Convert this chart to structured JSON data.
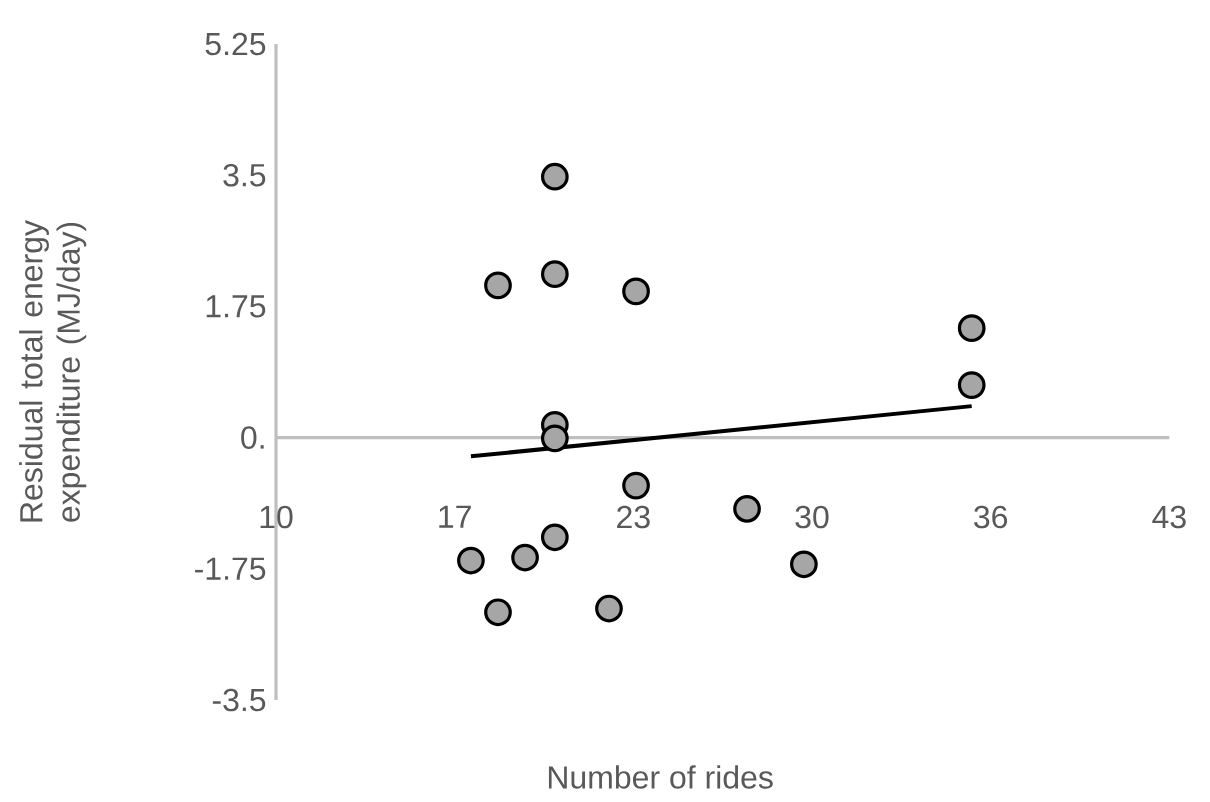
{
  "chart_data": {
    "type": "scatter",
    "xlabel": "Number of rides",
    "ylabel": "Residual total energy expenditure  (MJ/day)",
    "xlim": [
      10,
      43
    ],
    "ylim": [
      -3.5,
      5.25
    ],
    "xticks": [
      10,
      {
        "value": 16.6,
        "label": "17"
      },
      {
        "value": 23.2,
        "label": "23"
      },
      {
        "value": 29.8,
        "label": "30"
      },
      {
        "value": 36.4,
        "label": "36"
      },
      43
    ],
    "yticks": [
      -3.5,
      -1.75,
      {
        "value": 0,
        "label": "0."
      },
      1.75,
      3.5,
      5.25
    ],
    "grid": false,
    "legend": false,
    "series": [
      {
        "color": "#a6a6a6",
        "marker": "circle",
        "x": [
          20.3,
          18.2,
          20.3,
          23.3,
          35.7,
          35.7,
          20.3,
          20.3,
          23.3,
          27.4,
          20.3,
          19.2,
          17.2,
          29.5,
          18.2,
          22.3
        ],
        "values": [
          3.48,
          2.03,
          2.18,
          1.95,
          1.46,
          0.7,
          0.17,
          -0.01,
          -0.64,
          -0.95,
          -1.33,
          -1.6,
          -1.64,
          -1.69,
          -2.33,
          -2.28
        ]
      },
      {
        "type": "line",
        "color": "#000000",
        "marker": "none",
        "line_style": "solid",
        "x": [
          17.2,
          35.7
        ],
        "values": [
          -0.25,
          0.42
        ]
      }
    ]
  }
}
